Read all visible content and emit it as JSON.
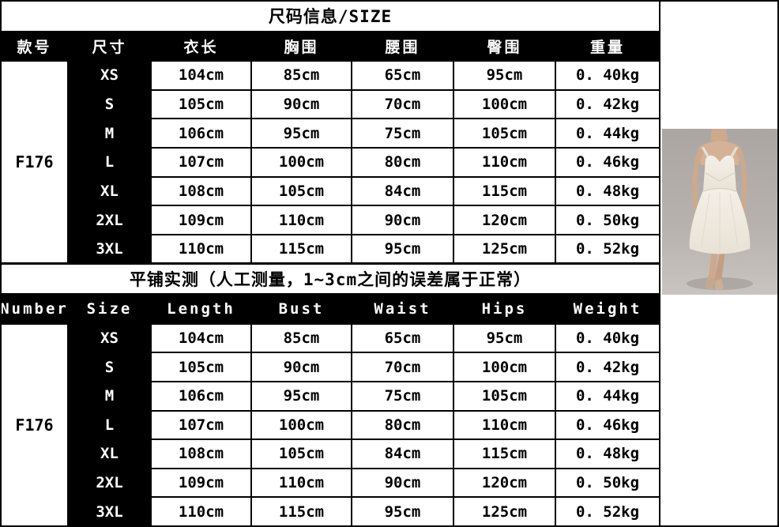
{
  "sheet": {
    "title": "尺码信息/SIZE",
    "measure_note": "平铺实测（人工测量，1~3cm之间的误差属于正常）"
  },
  "size_chart": {
    "product_code": "F176",
    "columns_cn": [
      "款号",
      "尺寸",
      "衣长",
      "胸围",
      "腰围",
      "臀围",
      "重量"
    ],
    "columns_en": [
      "Number",
      "Size",
      "Length",
      "Bust",
      "Waist",
      "Hips",
      "Weight"
    ],
    "sizes": [
      "XS",
      "S",
      "M",
      "L",
      "XL",
      "2XL",
      "3XL"
    ],
    "rows": [
      [
        "104cm",
        "85cm",
        "65cm",
        "95cm",
        "0. 40kg"
      ],
      [
        "105cm",
        "90cm",
        "70cm",
        "100cm",
        "0. 42kg"
      ],
      [
        "106cm",
        "95cm",
        "75cm",
        "105cm",
        "0. 44kg"
      ],
      [
        "107cm",
        "100cm",
        "80cm",
        "110cm",
        "0. 46kg"
      ],
      [
        "108cm",
        "105cm",
        "84cm",
        "115cm",
        "0. 48kg"
      ],
      [
        "109cm",
        "110cm",
        "90cm",
        "120cm",
        "0. 50kg"
      ],
      [
        "110cm",
        "115cm",
        "95cm",
        "125cm",
        "0. 52kg"
      ]
    ]
  },
  "product_image": {
    "description": "model wearing white strappy A-line knee-length dress with nude heels on gray studio background",
    "backdrop_color": "#b4aeab",
    "dress_color": "#f1ebe2",
    "skin_color": "#cda98e"
  },
  "colors": {
    "grid_line": "#000000",
    "header_bg": "#000000",
    "header_text": "#ffffff",
    "cell_bg": "#ffffff",
    "cell_text": "#000000"
  }
}
